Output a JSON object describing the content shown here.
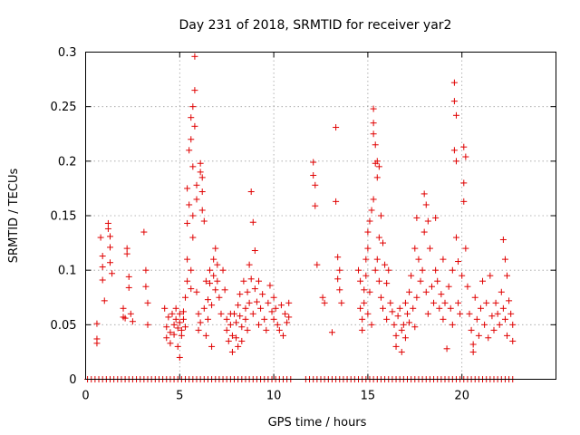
{
  "chart_data": {
    "type": "scatter",
    "title": "Day 231 of 2018, SRMTID for receiver yar2",
    "xlabel": "GPS time / hours",
    "ylabel": "SRMTID / TECUs",
    "xlim": [
      0,
      25
    ],
    "ylim": [
      0,
      0.3
    ],
    "xticks": [
      0,
      5,
      10,
      15,
      20
    ],
    "xtick_labels": [
      "0",
      "5",
      "10",
      "15",
      "20"
    ],
    "yticks": [
      0,
      0.05,
      0.1,
      0.15,
      0.2,
      0.25,
      0.3
    ],
    "ytick_labels": [
      "0",
      "0.05",
      "0.1",
      "0.15",
      "0.2",
      "0.25",
      "0.3"
    ],
    "grid": true,
    "marker": "+",
    "series": [
      {
        "name": "SRMTID",
        "color": "#e00000",
        "points": [
          [
            0.6,
            0.051
          ],
          [
            0.6,
            0.037
          ],
          [
            0.6,
            0.033
          ],
          [
            0.8,
            0.13
          ],
          [
            0.9,
            0.113
          ],
          [
            0.9,
            0.103
          ],
          [
            0.9,
            0.091
          ],
          [
            1.0,
            0.072
          ],
          [
            1.2,
            0.143
          ],
          [
            1.2,
            0.138
          ],
          [
            1.3,
            0.131
          ],
          [
            1.3,
            0.121
          ],
          [
            1.3,
            0.107
          ],
          [
            1.4,
            0.097
          ],
          [
            2.0,
            0.065
          ],
          [
            2.0,
            0.057
          ],
          [
            2.1,
            0.056
          ],
          [
            2.2,
            0.12
          ],
          [
            2.2,
            0.115
          ],
          [
            2.3,
            0.094
          ],
          [
            2.3,
            0.084
          ],
          [
            2.4,
            0.06
          ],
          [
            2.5,
            0.053
          ],
          [
            3.1,
            0.135
          ],
          [
            3.2,
            0.1
          ],
          [
            3.2,
            0.085
          ],
          [
            3.3,
            0.07
          ],
          [
            3.3,
            0.05
          ],
          [
            4.2,
            0.065
          ],
          [
            4.3,
            0.048
          ],
          [
            4.3,
            0.038
          ],
          [
            4.4,
            0.057
          ],
          [
            4.5,
            0.043
          ],
          [
            4.5,
            0.033
          ],
          [
            4.6,
            0.06
          ],
          [
            4.7,
            0.05
          ],
          [
            4.7,
            0.041
          ],
          [
            4.8,
            0.065
          ],
          [
            4.8,
            0.055
          ],
          [
            4.9,
            0.047
          ],
          [
            4.9,
            0.03
          ],
          [
            5.0,
            0.06
          ],
          [
            5.0,
            0.052
          ],
          [
            5.0,
            0.02
          ],
          [
            5.1,
            0.045
          ],
          [
            5.1,
            0.04
          ],
          [
            5.2,
            0.062
          ],
          [
            5.2,
            0.055
          ],
          [
            5.3,
            0.048
          ],
          [
            5.3,
            0.075
          ],
          [
            5.4,
            0.09
          ],
          [
            5.4,
            0.11
          ],
          [
            5.4,
            0.143
          ],
          [
            5.4,
            0.175
          ],
          [
            5.5,
            0.21
          ],
          [
            5.5,
            0.16
          ],
          [
            5.6,
            0.24
          ],
          [
            5.6,
            0.22
          ],
          [
            5.6,
            0.1
          ],
          [
            5.6,
            0.083
          ],
          [
            5.7,
            0.25
          ],
          [
            5.7,
            0.195
          ],
          [
            5.7,
            0.15
          ],
          [
            5.7,
            0.13
          ],
          [
            5.8,
            0.296
          ],
          [
            5.8,
            0.265
          ],
          [
            5.8,
            0.232
          ],
          [
            5.9,
            0.178
          ],
          [
            5.9,
            0.165
          ],
          [
            5.9,
            0.08
          ],
          [
            6.0,
            0.06
          ],
          [
            6.0,
            0.045
          ],
          [
            6.1,
            0.198
          ],
          [
            6.1,
            0.19
          ],
          [
            6.1,
            0.052
          ],
          [
            6.2,
            0.185
          ],
          [
            6.2,
            0.172
          ],
          [
            6.2,
            0.155
          ],
          [
            6.3,
            0.145
          ],
          [
            6.3,
            0.065
          ],
          [
            6.4,
            0.09
          ],
          [
            6.4,
            0.04
          ],
          [
            6.5,
            0.073
          ],
          [
            6.5,
            0.055
          ],
          [
            6.6,
            0.1
          ],
          [
            6.6,
            0.088
          ],
          [
            6.7,
            0.068
          ],
          [
            6.7,
            0.03
          ],
          [
            6.8,
            0.11
          ],
          [
            6.8,
            0.095
          ],
          [
            6.9,
            0.12
          ],
          [
            6.9,
            0.082
          ],
          [
            7.0,
            0.105
          ],
          [
            7.0,
            0.09
          ],
          [
            7.1,
            0.075
          ],
          [
            7.2,
            0.06
          ],
          [
            7.3,
            0.1
          ],
          [
            7.4,
            0.082
          ],
          [
            7.5,
            0.055
          ],
          [
            7.5,
            0.045
          ],
          [
            7.6,
            0.035
          ],
          [
            7.7,
            0.06
          ],
          [
            7.7,
            0.05
          ],
          [
            7.8,
            0.04
          ],
          [
            7.8,
            0.025
          ],
          [
            7.9,
            0.06
          ],
          [
            8.0,
            0.052
          ],
          [
            8.0,
            0.038
          ],
          [
            8.1,
            0.068
          ],
          [
            8.1,
            0.03
          ],
          [
            8.2,
            0.078
          ],
          [
            8.2,
            0.058
          ],
          [
            8.3,
            0.048
          ],
          [
            8.3,
            0.035
          ],
          [
            8.4,
            0.09
          ],
          [
            8.5,
            0.065
          ],
          [
            8.5,
            0.055
          ],
          [
            8.6,
            0.08
          ],
          [
            8.6,
            0.045
          ],
          [
            8.7,
            0.105
          ],
          [
            8.7,
            0.07
          ],
          [
            8.8,
            0.172
          ],
          [
            8.8,
            0.092
          ],
          [
            8.9,
            0.144
          ],
          [
            8.9,
            0.06
          ],
          [
            9.0,
            0.118
          ],
          [
            9.0,
            0.083
          ],
          [
            9.1,
            0.071
          ],
          [
            9.2,
            0.09
          ],
          [
            9.2,
            0.05
          ],
          [
            9.3,
            0.065
          ],
          [
            9.4,
            0.078
          ],
          [
            9.5,
            0.055
          ],
          [
            9.6,
            0.045
          ],
          [
            9.7,
            0.07
          ],
          [
            9.8,
            0.086
          ],
          [
            9.9,
            0.062
          ],
          [
            10.0,
            0.075
          ],
          [
            10.0,
            0.055
          ],
          [
            10.1,
            0.065
          ],
          [
            10.2,
            0.05
          ],
          [
            10.3,
            0.045
          ],
          [
            10.4,
            0.068
          ],
          [
            10.5,
            0.04
          ],
          [
            10.6,
            0.06
          ],
          [
            10.7,
            0.052
          ],
          [
            10.8,
            0.057
          ],
          [
            10.8,
            0.07
          ],
          [
            12.1,
            0.199
          ],
          [
            12.1,
            0.187
          ],
          [
            12.2,
            0.178
          ],
          [
            12.2,
            0.159
          ],
          [
            12.3,
            0.105
          ],
          [
            12.6,
            0.075
          ],
          [
            12.7,
            0.07
          ],
          [
            13.1,
            0.043
          ],
          [
            13.3,
            0.231
          ],
          [
            13.3,
            0.163
          ],
          [
            13.4,
            0.112
          ],
          [
            13.4,
            0.092
          ],
          [
            13.5,
            0.1
          ],
          [
            13.5,
            0.082
          ],
          [
            13.6,
            0.07
          ],
          [
            14.5,
            0.1
          ],
          [
            14.6,
            0.09
          ],
          [
            14.6,
            0.065
          ],
          [
            14.7,
            0.055
          ],
          [
            14.7,
            0.045
          ],
          [
            14.8,
            0.082
          ],
          [
            14.8,
            0.07
          ],
          [
            14.9,
            0.11
          ],
          [
            14.9,
            0.095
          ],
          [
            15.0,
            0.135
          ],
          [
            15.0,
            0.12
          ],
          [
            15.0,
            0.06
          ],
          [
            15.1,
            0.145
          ],
          [
            15.1,
            0.08
          ],
          [
            15.2,
            0.155
          ],
          [
            15.2,
            0.05
          ],
          [
            15.3,
            0.248
          ],
          [
            15.3,
            0.235
          ],
          [
            15.3,
            0.225
          ],
          [
            15.3,
            0.165
          ],
          [
            15.4,
            0.215
          ],
          [
            15.4,
            0.198
          ],
          [
            15.4,
            0.1
          ],
          [
            15.5,
            0.2
          ],
          [
            15.5,
            0.185
          ],
          [
            15.5,
            0.11
          ],
          [
            15.6,
            0.195
          ],
          [
            15.6,
            0.13
          ],
          [
            15.6,
            0.09
          ],
          [
            15.7,
            0.15
          ],
          [
            15.7,
            0.075
          ],
          [
            15.8,
            0.125
          ],
          [
            15.8,
            0.065
          ],
          [
            15.9,
            0.105
          ],
          [
            16.0,
            0.088
          ],
          [
            16.0,
            0.055
          ],
          [
            16.1,
            0.1
          ],
          [
            16.2,
            0.07
          ],
          [
            16.3,
            0.062
          ],
          [
            16.4,
            0.05
          ],
          [
            16.5,
            0.04
          ],
          [
            16.5,
            0.03
          ],
          [
            16.6,
            0.058
          ],
          [
            16.7,
            0.065
          ],
          [
            16.8,
            0.045
          ],
          [
            16.8,
            0.025
          ],
          [
            16.9,
            0.05
          ],
          [
            17.0,
            0.07
          ],
          [
            17.0,
            0.038
          ],
          [
            17.1,
            0.06
          ],
          [
            17.2,
            0.08
          ],
          [
            17.2,
            0.052
          ],
          [
            17.3,
            0.095
          ],
          [
            17.4,
            0.065
          ],
          [
            17.5,
            0.12
          ],
          [
            17.5,
            0.048
          ],
          [
            17.6,
            0.148
          ],
          [
            17.6,
            0.075
          ],
          [
            17.7,
            0.11
          ],
          [
            17.8,
            0.09
          ],
          [
            17.9,
            0.1
          ],
          [
            18.0,
            0.17
          ],
          [
            18.0,
            0.135
          ],
          [
            18.1,
            0.16
          ],
          [
            18.1,
            0.08
          ],
          [
            18.2,
            0.145
          ],
          [
            18.2,
            0.06
          ],
          [
            18.3,
            0.12
          ],
          [
            18.4,
            0.085
          ],
          [
            18.5,
            0.07
          ],
          [
            18.6,
            0.148
          ],
          [
            18.6,
            0.1
          ],
          [
            18.7,
            0.09
          ],
          [
            18.8,
            0.065
          ],
          [
            18.9,
            0.078
          ],
          [
            19.0,
            0.11
          ],
          [
            19.0,
            0.055
          ],
          [
            19.1,
            0.07
          ],
          [
            19.2,
            0.028
          ],
          [
            19.3,
            0.085
          ],
          [
            19.4,
            0.065
          ],
          [
            19.5,
            0.05
          ],
          [
            19.5,
            0.1
          ],
          [
            19.6,
            0.272
          ],
          [
            19.6,
            0.255
          ],
          [
            19.6,
            0.21
          ],
          [
            19.7,
            0.242
          ],
          [
            19.7,
            0.2
          ],
          [
            19.7,
            0.13
          ],
          [
            19.8,
            0.108
          ],
          [
            19.8,
            0.07
          ],
          [
            19.9,
            0.06
          ],
          [
            20.0,
            0.095
          ],
          [
            20.1,
            0.213
          ],
          [
            20.1,
            0.18
          ],
          [
            20.1,
            0.163
          ],
          [
            20.2,
            0.204
          ],
          [
            20.2,
            0.12
          ],
          [
            20.3,
            0.085
          ],
          [
            20.4,
            0.06
          ],
          [
            20.5,
            0.045
          ],
          [
            20.6,
            0.032
          ],
          [
            20.6,
            0.025
          ],
          [
            20.7,
            0.075
          ],
          [
            20.8,
            0.055
          ],
          [
            20.9,
            0.04
          ],
          [
            21.0,
            0.065
          ],
          [
            21.1,
            0.09
          ],
          [
            21.2,
            0.05
          ],
          [
            21.3,
            0.07
          ],
          [
            21.4,
            0.038
          ],
          [
            21.5,
            0.095
          ],
          [
            21.6,
            0.058
          ],
          [
            21.7,
            0.045
          ],
          [
            21.8,
            0.07
          ],
          [
            21.9,
            0.06
          ],
          [
            22.0,
            0.05
          ],
          [
            22.1,
            0.08
          ],
          [
            22.2,
            0.128
          ],
          [
            22.2,
            0.065
          ],
          [
            22.3,
            0.11
          ],
          [
            22.3,
            0.055
          ],
          [
            22.4,
            0.095
          ],
          [
            22.4,
            0.04
          ],
          [
            22.5,
            0.072
          ],
          [
            22.6,
            0.06
          ],
          [
            22.7,
            0.05
          ],
          [
            22.7,
            0.035
          ]
        ]
      }
    ],
    "zero_markers_x": [
      0.1,
      0.3,
      0.5,
      0.7,
      0.9,
      1.1,
      1.3,
      1.5,
      1.7,
      1.9,
      2.1,
      2.3,
      2.5,
      2.7,
      2.9,
      3.1,
      3.3,
      3.5,
      3.7,
      3.9,
      4.1,
      4.3,
      4.5,
      4.7,
      4.9,
      5.1,
      5.3,
      5.5,
      5.7,
      5.9,
      6.1,
      6.3,
      6.5,
      6.7,
      6.9,
      7.1,
      7.3,
      7.5,
      7.7,
      7.9,
      8.1,
      8.3,
      8.5,
      8.7,
      8.9,
      9.1,
      9.3,
      9.5,
      9.7,
      9.9,
      10.1,
      10.3,
      10.5,
      10.7,
      10.9,
      11.7,
      11.9,
      12.1,
      12.3,
      12.5,
      12.7,
      12.9,
      13.1,
      13.3,
      13.5,
      13.7,
      13.9,
      14.1,
      14.3,
      14.5,
      14.7,
      14.9,
      15.1,
      15.3,
      15.5,
      15.7,
      15.9,
      16.1,
      16.3,
      16.5,
      16.7,
      16.9,
      17.1,
      17.3,
      17.5,
      17.7,
      17.9,
      18.1,
      18.3,
      18.5,
      18.7,
      18.9,
      19.1,
      19.3,
      19.5,
      19.7,
      19.9,
      20.1,
      20.3,
      20.5,
      20.7,
      20.9,
      21.1,
      21.3,
      21.5,
      21.7,
      21.9,
      22.1,
      22.3,
      22.5,
      22.7
    ]
  }
}
